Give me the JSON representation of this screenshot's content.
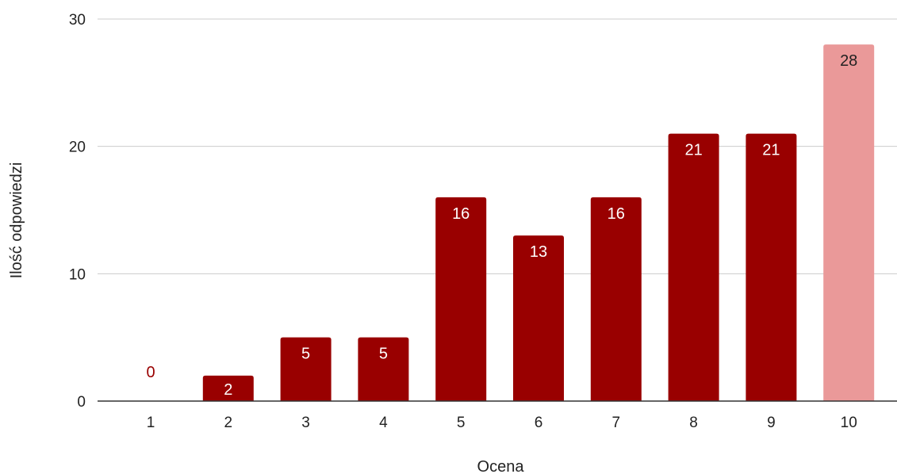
{
  "chart_data": {
    "type": "bar",
    "title": "",
    "xlabel": "Ocena",
    "ylabel": "Ilość odpowiedzi",
    "categories": [
      "1",
      "2",
      "3",
      "4",
      "5",
      "6",
      "7",
      "8",
      "9",
      "10"
    ],
    "values": [
      0,
      2,
      5,
      5,
      16,
      13,
      16,
      21,
      21,
      28
    ],
    "data_labels": [
      "0",
      "2",
      "5",
      "5",
      "16",
      "13",
      "16",
      "21",
      "21",
      "28"
    ],
    "ylim": [
      0,
      30
    ],
    "y_ticks": [
      "0",
      "10",
      "20",
      "30"
    ],
    "grid": true,
    "legend": "none",
    "colors": {
      "bar": "#990000",
      "highlight_bar": "#ea9999",
      "gridline": "#cccccc",
      "baseline": "#333333",
      "label_on_dark": "#ffffff",
      "label_on_light": "#222222",
      "label_zero": "#990000"
    },
    "highlight_index": 9
  }
}
